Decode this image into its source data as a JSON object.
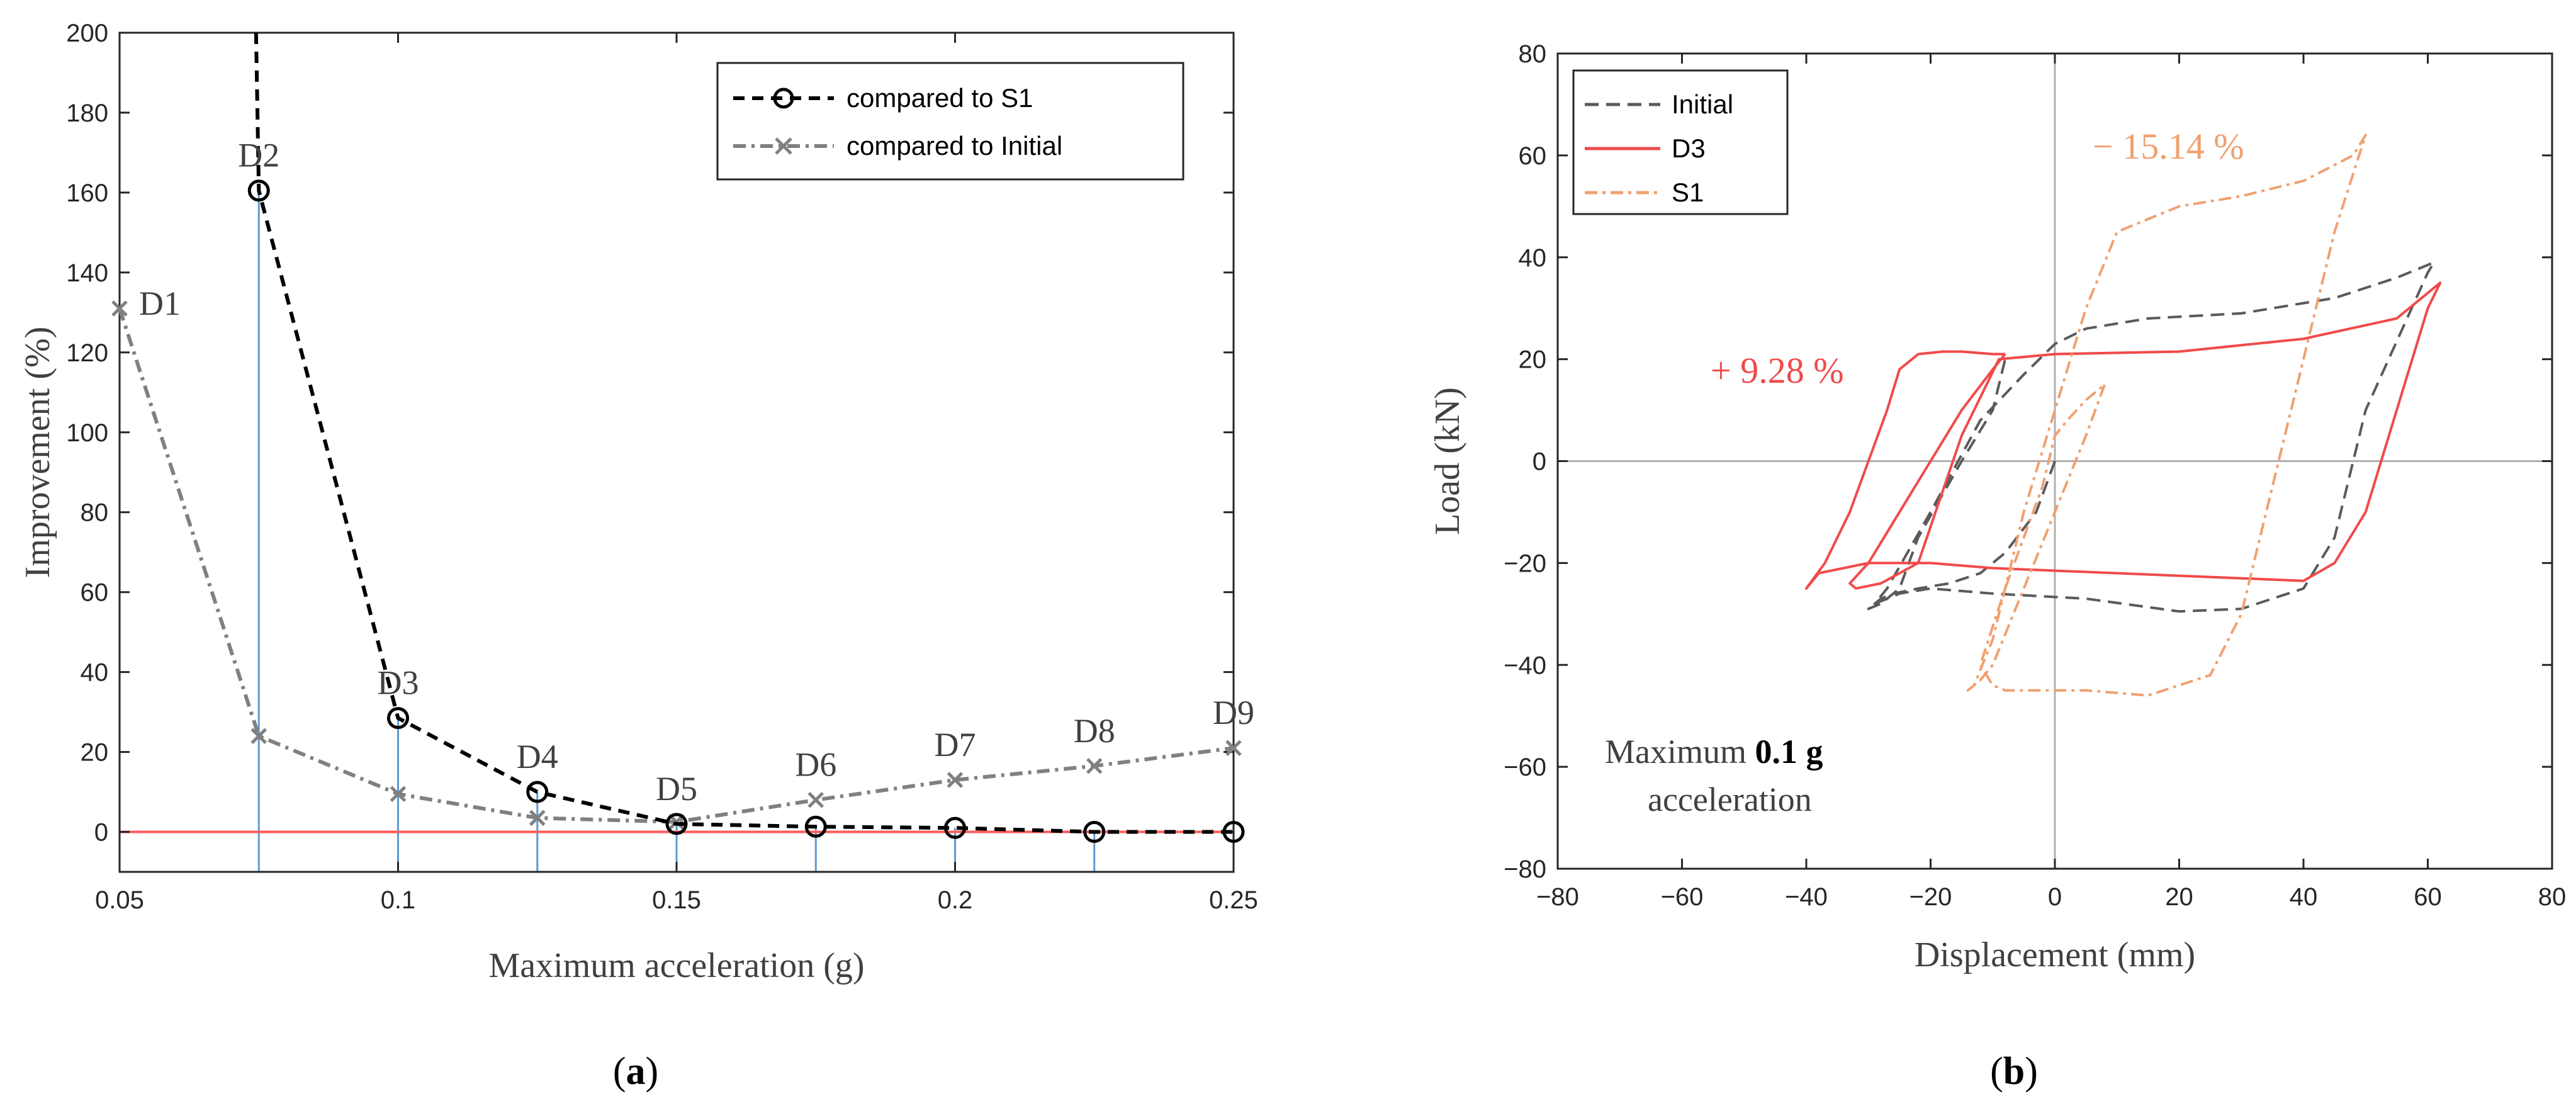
{
  "panel_labels": {
    "a": "(a)",
    "b": "(b)"
  },
  "colors": {
    "s1_curve": "#000000",
    "initial_curve": "#808080",
    "zero_line": "#ff5b5b",
    "stems": "#5b9bd5",
    "hyst_initial": "#5a5a5a",
    "hyst_d3": "#f04a4a",
    "hyst_s1": "#f0a070",
    "ann_red": "#f04a4a",
    "ann_orange": "#f0a070"
  },
  "chart_data": [
    {
      "type": "line",
      "title": "",
      "xlabel": "Maximum acceleration (g)",
      "ylabel": "Improvement (%)",
      "xlim": [
        0.05,
        0.25
      ],
      "ylim": [
        -10,
        200
      ],
      "xticks": [
        "0.05",
        "0.1",
        "0.15",
        "0.2",
        "0.25"
      ],
      "xtick_values": [
        0.05,
        0.1,
        0.15,
        0.2,
        0.25
      ],
      "yticks": [
        "0",
        "20",
        "40",
        "60",
        "80",
        "100",
        "120",
        "140",
        "160",
        "180",
        "200"
      ],
      "ytick_values": [
        0,
        20,
        40,
        60,
        80,
        100,
        120,
        140,
        160,
        180,
        200
      ],
      "design_labels": [
        "D1",
        "D2",
        "D3",
        "D4",
        "D5",
        "D6",
        "D7",
        "D8",
        "D9"
      ],
      "stem_x": [
        0.075,
        0.1,
        0.125,
        0.15,
        0.175,
        0.2,
        0.225
      ],
      "series": [
        {
          "name": "compared to S1",
          "style": "dashed-circle",
          "x": [
            0.075,
            0.1,
            0.125,
            0.15,
            0.175,
            0.2,
            0.225,
            0.25
          ],
          "values": [
            160.5,
            28.5,
            10,
            2,
            1.3,
            1,
            0,
            0
          ],
          "lead_in": {
            "x": 0.0745,
            "y": 200
          }
        },
        {
          "name": "compared to Initial",
          "style": "dashdot-x",
          "x": [
            0.05,
            0.075,
            0.1,
            0.125,
            0.15,
            0.175,
            0.2,
            0.225,
            0.25
          ],
          "values": [
            131,
            24,
            9.5,
            3.5,
            2.5,
            8,
            13,
            16.5,
            21
          ]
        }
      ],
      "legend": "top-right"
    },
    {
      "type": "line",
      "title": "",
      "xlabel": "Displacement (mm)",
      "ylabel": "Load (kN)",
      "xlim": [
        -80,
        80
      ],
      "ylim": [
        -80,
        80
      ],
      "xticks": [
        "−80",
        "−60",
        "−40",
        "−20",
        "0",
        "20",
        "40",
        "60",
        "80"
      ],
      "xtick_values": [
        -80,
        -60,
        -40,
        -20,
        0,
        20,
        40,
        60,
        80
      ],
      "yticks": [
        "−80",
        "−60",
        "−40",
        "−20",
        "0",
        "20",
        "40",
        "60",
        "80"
      ],
      "ytick_values": [
        -80,
        -60,
        -40,
        -20,
        0,
        20,
        40,
        60,
        80
      ],
      "legend": "top-left",
      "series": [
        {
          "name": "Initial",
          "style": "dashed",
          "x": [
            0,
            -3,
            -8,
            -12,
            -17,
            -22,
            -26,
            -28,
            -29,
            -27,
            -20,
            -12,
            -5,
            0,
            5,
            15,
            30,
            45,
            55,
            61,
            60,
            50,
            45,
            40,
            30,
            20,
            5,
            -10,
            -20,
            -25,
            -27,
            -29,
            -30,
            -28,
            -25,
            -22,
            -15,
            -10,
            -8
          ],
          "y": [
            0,
            -10,
            -18,
            -22,
            -24,
            -25,
            -26,
            -27,
            -28,
            -25,
            -10,
            8,
            17,
            23,
            26,
            28,
            29,
            32,
            36,
            39,
            37,
            10,
            -15,
            -25,
            -29,
            -29.5,
            -27,
            -26,
            -25,
            -26,
            -27,
            -28,
            -29,
            -28,
            -25,
            -15,
            0,
            10,
            20
          ]
        },
        {
          "name": "D3",
          "style": "solid",
          "x": [
            -8,
            -10,
            -15,
            -20,
            -25,
            -30,
            -33,
            -32,
            -28,
            -22,
            -15,
            -9,
            0,
            20,
            40,
            55,
            62,
            60,
            55,
            50,
            45,
            40,
            30,
            10,
            -10,
            -20,
            -30,
            -38,
            -40,
            -37,
            -33,
            -30,
            -27,
            -25,
            -22,
            -18,
            -15,
            -10,
            -8
          ],
          "y": [
            21,
            18,
            10,
            0,
            -10,
            -20,
            -24,
            -25,
            -24,
            -20,
            5,
            20,
            21,
            21.5,
            24,
            28,
            35,
            30,
            10,
            -10,
            -20,
            -23.5,
            -23,
            -22,
            -21,
            -20,
            -20,
            -22,
            -25,
            -20,
            -10,
            0,
            10,
            18,
            21,
            21.5,
            21.5,
            21,
            21
          ]
        },
        {
          "name": "S1",
          "style": "dashdot",
          "x": [
            8,
            5,
            0,
            -5,
            -10,
            -12,
            -14,
            -13,
            -10,
            -5,
            0,
            5,
            10,
            20,
            30,
            40,
            48,
            50,
            45,
            40,
            35,
            30,
            25,
            15,
            5,
            -2,
            -8,
            -10,
            -12,
            -8,
            -2,
            0,
            2,
            5,
            8
          ],
          "y": [
            15,
            5,
            -10,
            -25,
            -40,
            -43,
            -45,
            -44,
            -35,
            -10,
            10,
            30,
            45,
            50,
            52,
            55,
            60,
            64,
            45,
            20,
            -5,
            -30,
            -42,
            -46,
            -45,
            -45,
            -45,
            -44,
            -40,
            -25,
            -5,
            5,
            8,
            12,
            15
          ]
        }
      ],
      "annotations": {
        "d3_change": "+ 9.28 %",
        "s1_change": "− 15.14 %",
        "max_prefix": "Maximum",
        "max_value": "0.1 g",
        "max_suffix": "acceleration"
      }
    }
  ]
}
